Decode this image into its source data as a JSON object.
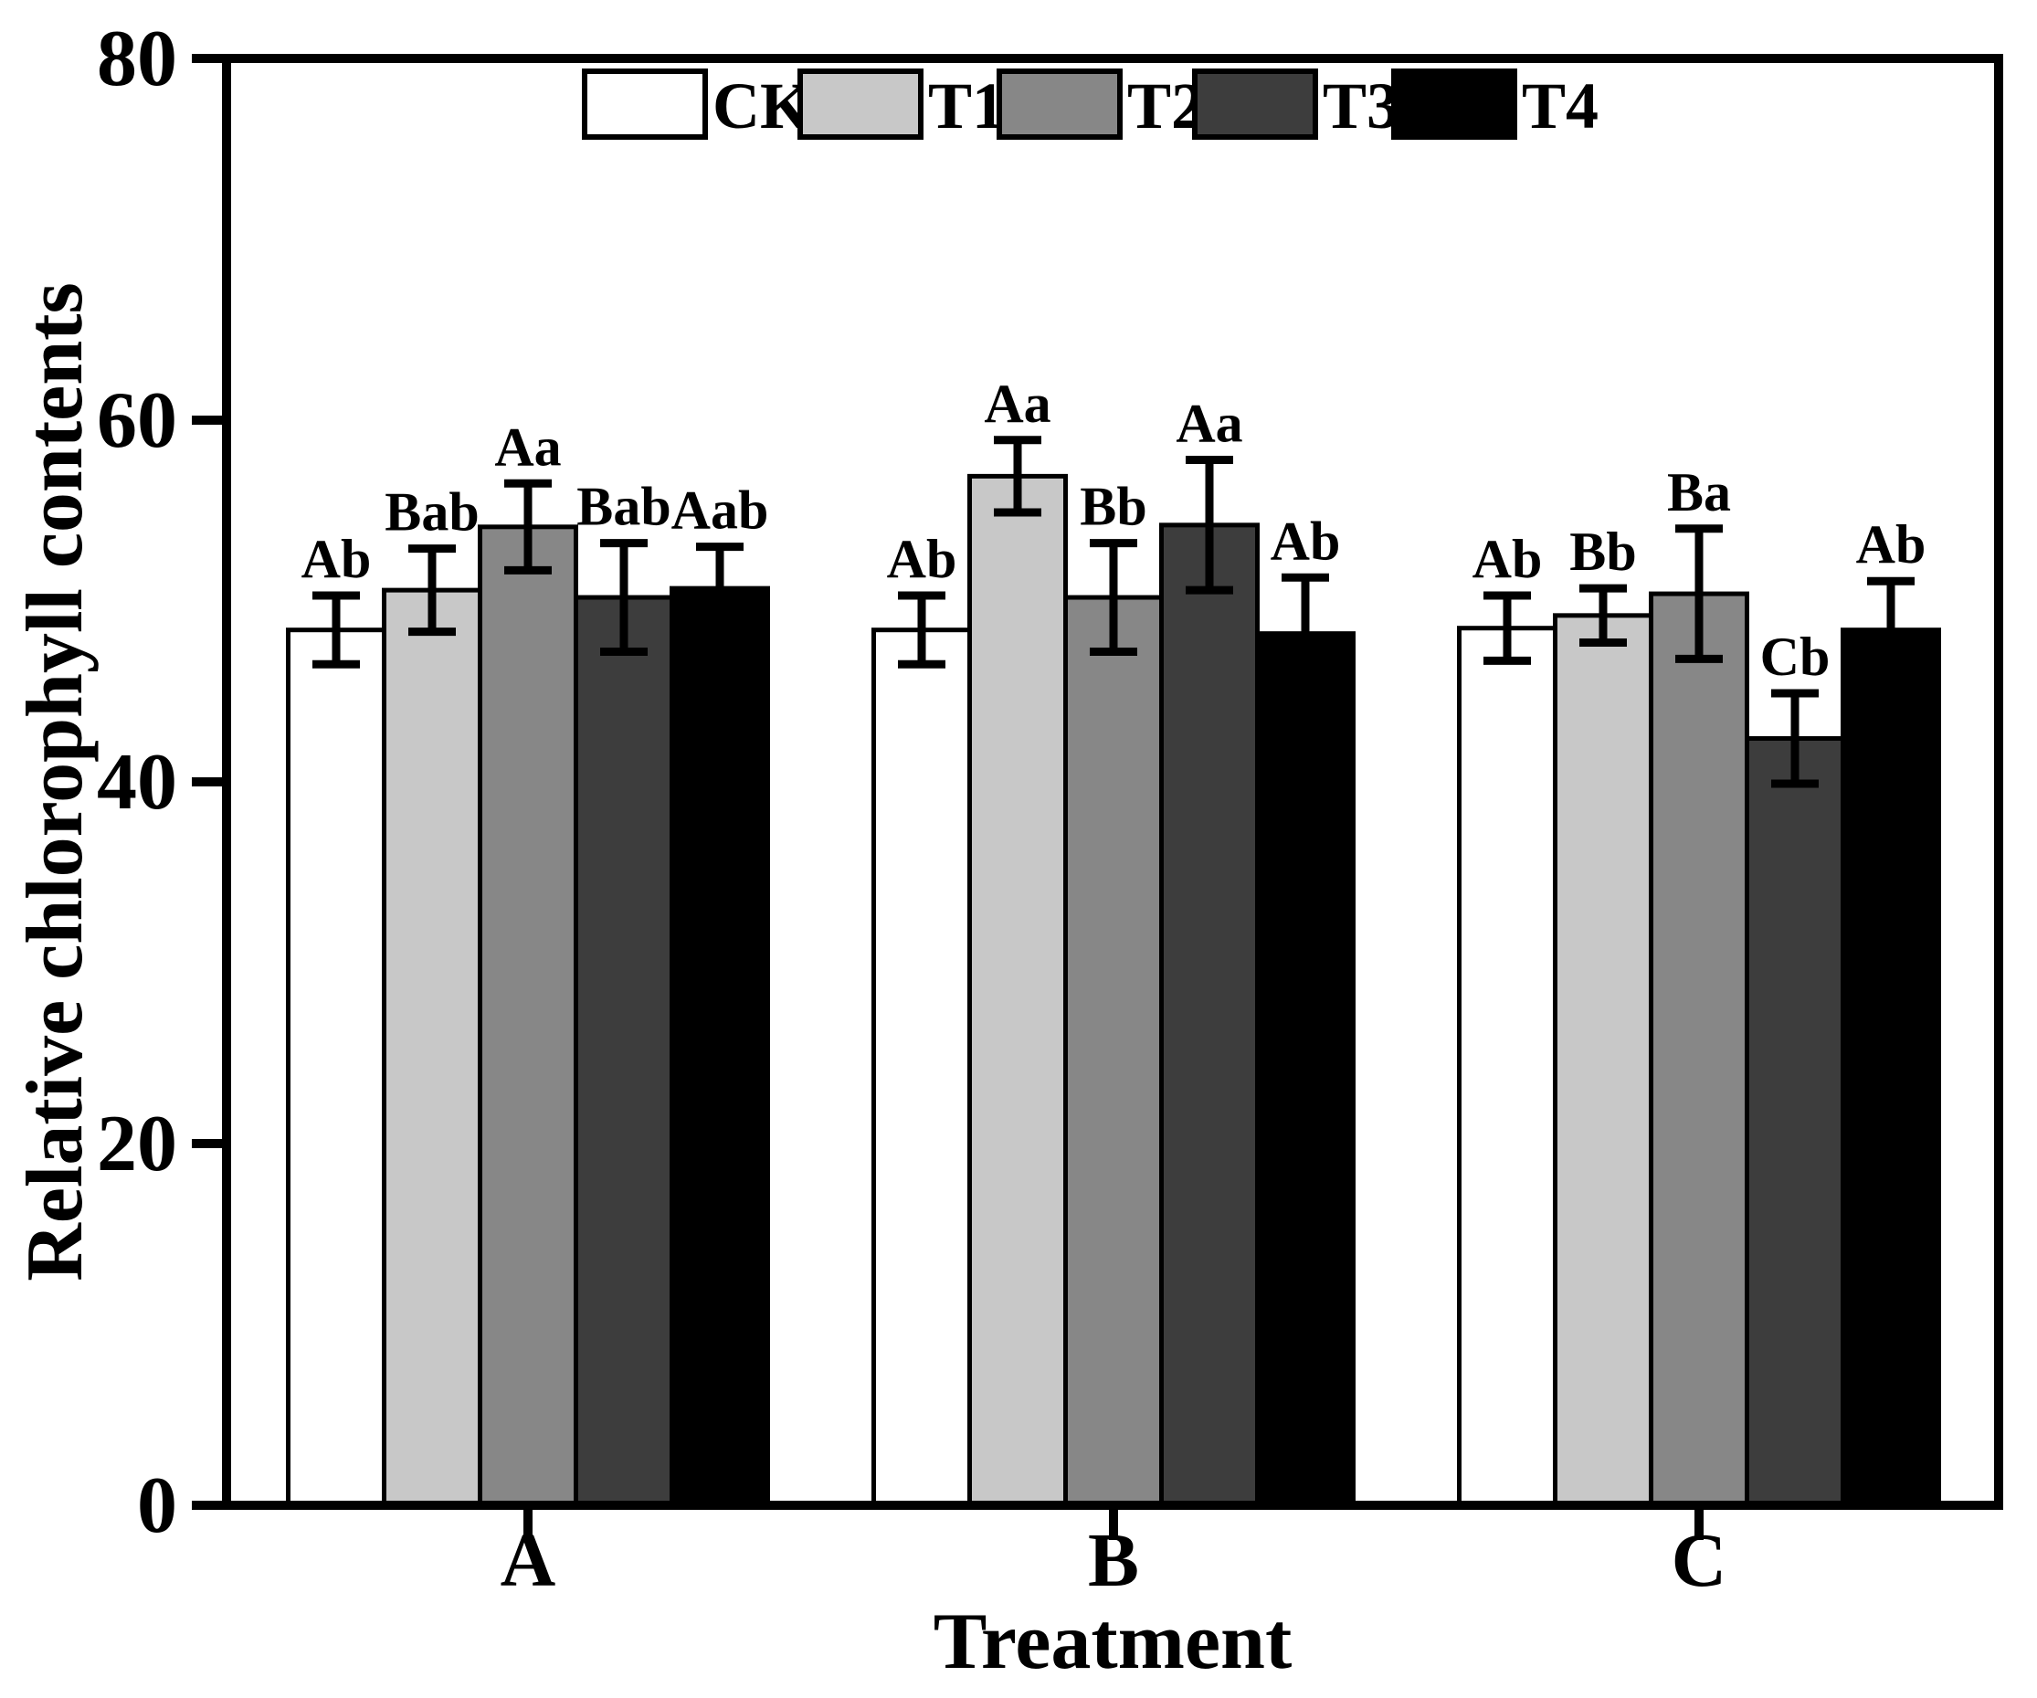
{
  "chart_data": {
    "type": "bar",
    "title": "",
    "xlabel": "Treatment",
    "ylabel": "Relative chlorophyll contents",
    "categories": [
      "A",
      "B",
      "C"
    ],
    "ylim": [
      0,
      80
    ],
    "yticks": [
      0,
      20,
      40,
      60,
      80
    ],
    "grid": false,
    "legend_position": "top-center-inside",
    "frame": "full-box",
    "axis_color": "#000000",
    "errorbar_color": "#000000",
    "series": [
      {
        "name": "CK",
        "fill": "#ffffff",
        "values": [
          48.4,
          48.4,
          48.5
        ],
        "errors": [
          1.9,
          1.9,
          1.8
        ],
        "sig_labels": [
          "Ab",
          "Ab",
          "Ab"
        ]
      },
      {
        "name": "T1",
        "fill": "#c8c8c8",
        "values": [
          50.6,
          56.9,
          49.2
        ],
        "errors": [
          2.3,
          2.0,
          1.5
        ],
        "sig_labels": [
          "Bab",
          "Aa",
          "Bb"
        ]
      },
      {
        "name": "T2",
        "fill": "#878787",
        "values": [
          54.1,
          50.2,
          50.4
        ],
        "errors": [
          2.4,
          3.0,
          3.6
        ],
        "sig_labels": [
          "Aa",
          "Bb",
          "Ba"
        ]
      },
      {
        "name": "T3",
        "fill": "#3d3d3d",
        "values": [
          50.2,
          54.2,
          42.4
        ],
        "errors": [
          3.0,
          3.6,
          2.5
        ],
        "sig_labels": [
          "Bab",
          "Aa",
          "Cb"
        ]
      },
      {
        "name": "T4",
        "fill": "#000000",
        "values": [
          50.7,
          48.2,
          48.4
        ],
        "errors": [
          2.3,
          3.1,
          2.7
        ],
        "sig_labels": [
          "Aab",
          "Ab",
          "Ab"
        ]
      }
    ]
  }
}
